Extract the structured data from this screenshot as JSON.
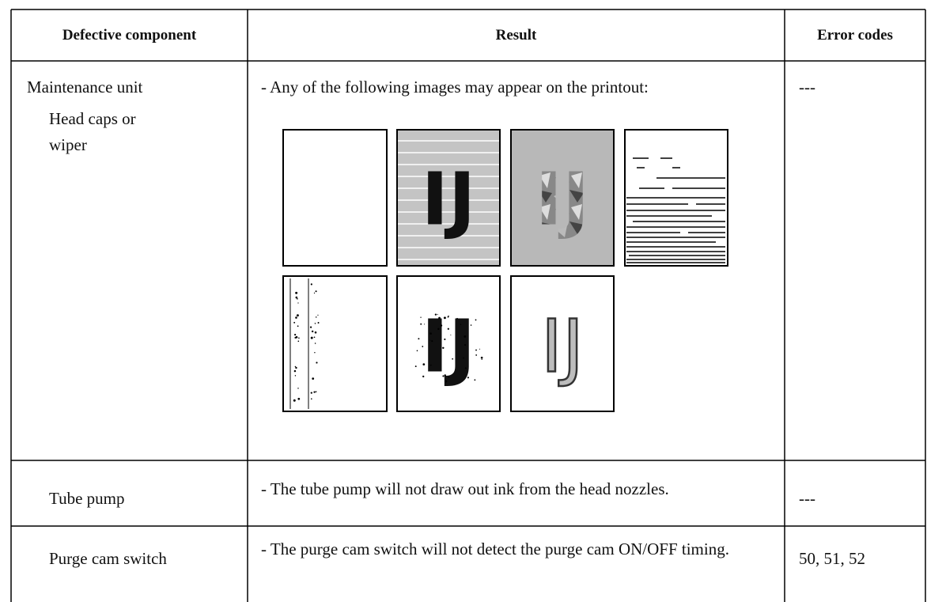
{
  "table": {
    "header": [
      "Defective component",
      "Result",
      "Error codes"
    ],
    "rows": [
      {
        "component": "Maintenance unit",
        "subcomponent": "Head caps or wiper",
        "result": "- Any of the following images may appear on the printout:",
        "sample_text": "IJ",
        "error_codes": "---"
      },
      {
        "component": "Tube pump",
        "result": "- The tube pump will not draw out ink from the head nozzles.",
        "error_codes": "---"
      },
      {
        "component": "Purge cam switch",
        "result": "- The purge cam switch will not detect the purge cam ON/OFF timing.",
        "error_codes": "50, 51, 52"
      }
    ]
  }
}
